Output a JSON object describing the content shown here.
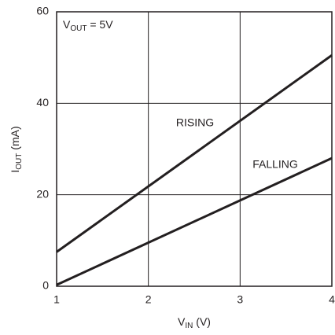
{
  "chart_data": {
    "type": "line",
    "annotation": {
      "text": "V",
      "sub": "OUT",
      "suffix": " = 5V"
    },
    "x_label": {
      "text": "V",
      "sub": "IN",
      "suffix": " (V)"
    },
    "y_label": {
      "text": "I",
      "sub": "OUT",
      "suffix": " (mA)"
    },
    "x": [
      1,
      4
    ],
    "series": [
      {
        "name": "RISING",
        "color": "#231f20",
        "values": [
          7.5,
          50.5
        ]
      },
      {
        "name": "FALLING",
        "color": "#231f20",
        "values": [
          0.3,
          28
        ]
      }
    ],
    "xlim": [
      1,
      4
    ],
    "xticks": [
      1,
      2,
      3,
      4
    ],
    "ylim": [
      0,
      60
    ],
    "yticks": [
      0,
      20,
      40,
      60
    ],
    "grid": true
  }
}
